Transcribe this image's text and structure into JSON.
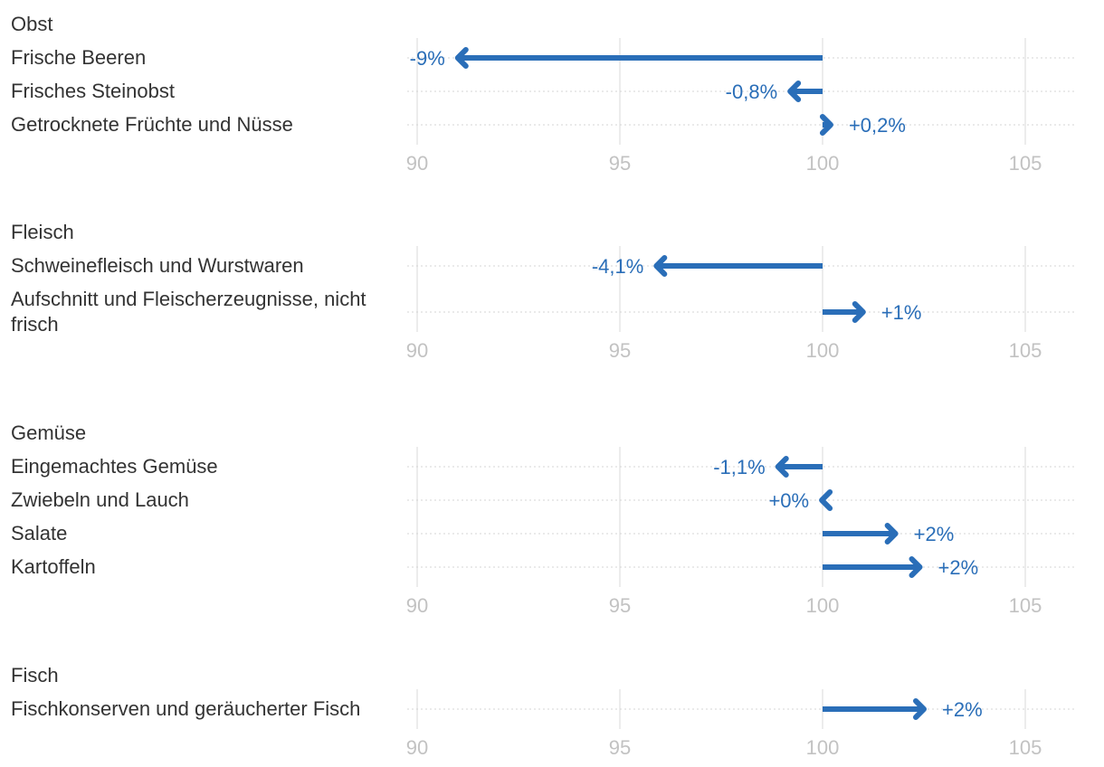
{
  "chart_data": {
    "type": "arrow",
    "baseline": 100,
    "xlim": [
      90,
      105
    ],
    "ticks": [
      90,
      95,
      100,
      105
    ],
    "tick_labels": [
      "90",
      "95",
      "100",
      "105"
    ],
    "grid": true,
    "colors": {
      "arrow": "#2a6eb8",
      "label": "#2a6eb8",
      "text": "#333333",
      "tick": "#c2c2c2"
    },
    "groups": [
      {
        "title": "Obst",
        "rows": [
          {
            "label": "Frische Beeren",
            "value": 91.0,
            "change_label": "-9%"
          },
          {
            "label": "Frisches Steinobst",
            "value": 99.2,
            "change_label": "-0,8%"
          },
          {
            "label": "Getrocknete Früchte und Nüsse",
            "value": 100.2,
            "change_label": "+0,2%"
          }
        ]
      },
      {
        "title": "Fleisch",
        "rows": [
          {
            "label": "Schweinefleisch und Wurstwaren",
            "value": 95.9,
            "change_label": "-4,1%"
          },
          {
            "label": "Aufschnitt und Fleischerzeugnisse, nicht frisch",
            "value": 101.0,
            "change_label": "+1%"
          }
        ]
      },
      {
        "title": "Gemüse",
        "rows": [
          {
            "label": "Eingemachtes Gemüse",
            "value": 98.9,
            "change_label": "-1,1%"
          },
          {
            "label": "Zwiebeln und Lauch",
            "value": 99.98,
            "change_label": "+0%"
          },
          {
            "label": "Salate",
            "value": 101.8,
            "change_label": "+2%"
          },
          {
            "label": "Kartoffeln",
            "value": 102.4,
            "change_label": "+2%"
          }
        ]
      },
      {
        "title": "Fisch",
        "rows": [
          {
            "label": "Fischkonserven und geräucherter Fisch",
            "value": 102.5,
            "change_label": "+2%"
          }
        ]
      }
    ]
  }
}
